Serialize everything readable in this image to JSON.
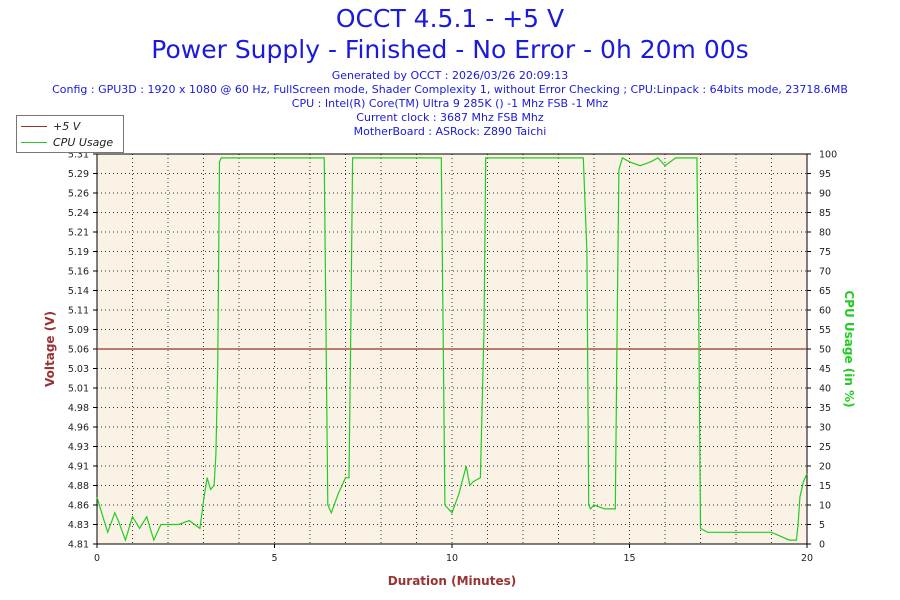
{
  "header": {
    "title": "OCCT 4.5.1 - +5 V",
    "subtitle": "Power Supply - Finished - No Error - 0h 20m 00s",
    "generated": "Generated by OCCT : 2026/03/26 20:09:13",
    "config": "Config : GPU3D : 1920 x 1080 @ 60 Hz, FullScreen mode, Shader Complexity 1, without Error Checking ; CPU:Linpack : 64bits mode, 23718.6MB",
    "cpu": "CPU : Intel(R) Core(TM) Ultra 9 285K () -1 Mhz FSB -1 Mhz",
    "clock": "Current clock : 3687 Mhz FSB  Mhz",
    "motherboard": "MotherBoard : ASRock: Z890 Taichi"
  },
  "legend": {
    "voltage_label": "+5 V",
    "cpu_label": "CPU Usage"
  },
  "colors": {
    "voltage": "#993333",
    "cpu": "#22cc22",
    "plot_bg": "#faf2e4",
    "axis_left": "#993333",
    "axis_right": "#22cc22"
  },
  "chart_data": {
    "type": "line",
    "xlabel": "Duration (Minutes)",
    "ylabel_left": "Voltage (V)",
    "ylabel_right": "CPU Usage (in %)",
    "xlim": [
      0,
      20
    ],
    "x_ticks": [
      "0",
      "5",
      "10",
      "15",
      "20"
    ],
    "ylim_left": [
      4.81,
      5.31
    ],
    "y_ticks_left": [
      "5.31",
      "5.29",
      "5.26",
      "5.24",
      "5.21",
      "5.19",
      "5.16",
      "5.14",
      "5.11",
      "5.09",
      "5.06",
      "5.03",
      "5.01",
      "4.98",
      "4.96",
      "4.93",
      "4.91",
      "4.88",
      "4.86",
      "4.83",
      "4.81"
    ],
    "ylim_right": [
      0,
      100
    ],
    "y_ticks_right": [
      "100",
      "95",
      "90",
      "85",
      "80",
      "75",
      "70",
      "65",
      "60",
      "55",
      "50",
      "45",
      "40",
      "35",
      "30",
      "25",
      "20",
      "15",
      "10",
      "5",
      "0"
    ],
    "grid": true,
    "legend_position": "top-left",
    "series": [
      {
        "name": "+5 V",
        "axis": "left",
        "x": [
          0,
          20
        ],
        "y": [
          5.06,
          5.06
        ]
      },
      {
        "name": "CPU Usage",
        "axis": "right",
        "x": [
          0,
          0.1,
          0.3,
          0.5,
          0.6,
          0.8,
          1.0,
          1.2,
          1.4,
          1.6,
          1.8,
          2.0,
          2.3,
          2.6,
          2.9,
          3.0,
          3.1,
          3.2,
          3.3,
          3.35,
          3.4,
          3.45,
          3.5,
          3.6,
          4.0,
          4.5,
          5.0,
          5.5,
          6.0,
          6.4,
          6.45,
          6.5,
          6.6,
          6.8,
          6.9,
          7.0,
          7.1,
          7.15,
          7.2,
          7.3,
          7.6,
          8.0,
          8.5,
          9.0,
          9.5,
          9.7,
          9.75,
          9.8,
          10.0,
          10.2,
          10.4,
          10.5,
          10.6,
          10.8,
          10.9,
          10.95,
          11.0,
          11.2,
          11.6,
          12.0,
          12.5,
          13.0,
          13.5,
          13.7,
          13.8,
          13.85,
          13.9,
          14.0,
          14.3,
          14.6,
          14.65,
          14.7,
          14.8,
          15.0,
          15.3,
          15.6,
          15.8,
          16.0,
          16.3,
          16.6,
          16.9,
          16.95,
          17.0,
          17.2,
          17.6,
          18.0,
          18.5,
          19.0,
          19.5,
          19.7,
          19.75,
          19.8,
          19.9,
          20.0
        ],
        "y": [
          12,
          9,
          3,
          8,
          6,
          1,
          7,
          4,
          7,
          1,
          5,
          5,
          5,
          6,
          4,
          11,
          17,
          14,
          15,
          23,
          45,
          98,
          99,
          99,
          99,
          99,
          99,
          99,
          99,
          99,
          55,
          10,
          8,
          13,
          15,
          17,
          17,
          55,
          99,
          99,
          99,
          99,
          99,
          99,
          99,
          99,
          55,
          10,
          8,
          13,
          20,
          15,
          16,
          17,
          55,
          99,
          99,
          99,
          99,
          99,
          99,
          99,
          99,
          99,
          75,
          10,
          9,
          10,
          9,
          9,
          55,
          96,
          99,
          98,
          97,
          98,
          99,
          97,
          99,
          99,
          99,
          60,
          4,
          3,
          3,
          3,
          3,
          3,
          1,
          1,
          5,
          12,
          16,
          18
        ]
      }
    ]
  }
}
